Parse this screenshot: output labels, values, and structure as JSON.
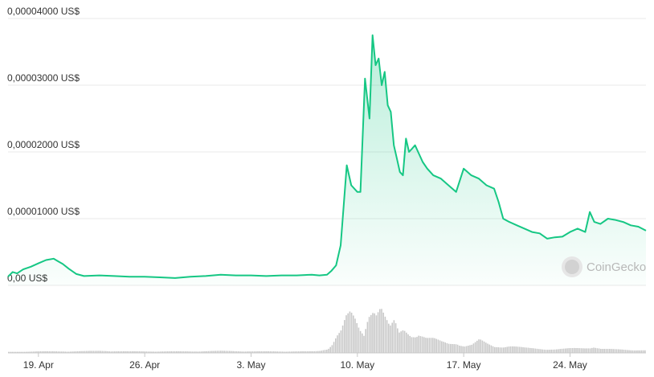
{
  "chart_data": {
    "type": "area",
    "currency_suffix": " US$",
    "y_ticks": [
      {
        "label": "0,00004000 US$",
        "value": 4e-05
      },
      {
        "label": "0,00003000 US$",
        "value": 3e-05
      },
      {
        "label": "0,00002000 US$",
        "value": 2e-05
      },
      {
        "label": "0,00001000 US$",
        "value": 1e-05
      },
      {
        "label": "0,00 US$",
        "value": 0
      }
    ],
    "ylim": [
      0,
      4e-05
    ],
    "x_ticks": [
      "19. Apr",
      "26. Apr",
      "3. May",
      "10. May",
      "17. May",
      "24. May"
    ],
    "x_tick_days": [
      2,
      9,
      16,
      23,
      30,
      37
    ],
    "xlim_days": [
      0,
      42
    ],
    "grid": true,
    "line_color": "#16c784",
    "volume_color": "#c9c9c9",
    "watermark": "CoinGecko",
    "price_series": {
      "x_day": [
        0,
        0.3,
        0.6,
        1.0,
        1.5,
        2.0,
        2.5,
        3.0,
        3.3,
        3.6,
        4.0,
        4.5,
        5.0,
        6.0,
        7.0,
        8.0,
        9.0,
        10.0,
        11.0,
        12.0,
        13.0,
        14.0,
        15.0,
        16.0,
        17.0,
        18.0,
        19.0,
        20.0,
        20.5,
        21.0,
        21.3,
        21.6,
        21.9,
        22.1,
        22.3,
        22.6,
        23.0,
        23.2,
        23.5,
        23.8,
        24.0,
        24.2,
        24.4,
        24.6,
        24.8,
        25.0,
        25.2,
        25.4,
        25.6,
        25.8,
        26.0,
        26.2,
        26.4,
        26.6,
        26.8,
        27.0,
        27.3,
        27.6,
        28.0,
        28.5,
        29.0,
        29.5,
        30.0,
        30.5,
        31.0,
        31.5,
        32.0,
        32.3,
        32.6,
        33.0,
        33.5,
        34.0,
        34.5,
        35.0,
        35.5,
        36.0,
        36.5,
        37.0,
        37.5,
        38.0,
        38.3,
        38.6,
        39.0,
        39.5,
        40.0,
        40.5,
        41.0,
        41.5,
        42.0
      ],
      "price": [
        1.3e-06,
        2e-06,
        1.8e-06,
        2.4e-06,
        2.8e-06,
        3.3e-06,
        3.8e-06,
        4e-06,
        3.6e-06,
        3.2e-06,
        2.5e-06,
        1.7e-06,
        1.4e-06,
        1.5e-06,
        1.4e-06,
        1.3e-06,
        1.3e-06,
        1.2e-06,
        1.1e-06,
        1.3e-06,
        1.4e-06,
        1.6e-06,
        1.5e-06,
        1.5e-06,
        1.4e-06,
        1.5e-06,
        1.5e-06,
        1.6e-06,
        1.5e-06,
        1.6e-06,
        2.2e-06,
        3e-06,
        6e-06,
        1.2e-05,
        1.8e-05,
        1.5e-05,
        1.4e-05,
        1.4e-05,
        3.1e-05,
        2.5e-05,
        3.75e-05,
        3.3e-05,
        3.4e-05,
        3e-05,
        3.2e-05,
        2.7e-05,
        2.6e-05,
        2.1e-05,
        1.9e-05,
        1.7e-05,
        1.65e-05,
        2.2e-05,
        2e-05,
        2.05e-05,
        2.1e-05,
        2e-05,
        1.85e-05,
        1.75e-05,
        1.65e-05,
        1.6e-05,
        1.5e-05,
        1.4e-05,
        1.75e-05,
        1.65e-05,
        1.6e-05,
        1.5e-05,
        1.45e-05,
        1.25e-05,
        1e-05,
        9.5e-06,
        9e-06,
        8.5e-06,
        8e-06,
        7.8e-06,
        7e-06,
        7.2e-06,
        7.3e-06,
        8e-06,
        8.5e-06,
        8e-06,
        1.1e-05,
        9.5e-06,
        9.2e-06,
        1e-05,
        9.8e-06,
        9.5e-06,
        9e-06,
        8.8e-06,
        8.2e-06
      ]
    },
    "volume_series": {
      "x_day": [
        0,
        2,
        4,
        6,
        8,
        10,
        12,
        14,
        16,
        18,
        20,
        20.5,
        21.0,
        21.3,
        21.6,
        21.9,
        22.2,
        22.5,
        22.8,
        23.1,
        23.4,
        23.7,
        24.0,
        24.2,
        24.5,
        24.8,
        25.1,
        25.4,
        25.7,
        26.0,
        26.5,
        27.0,
        27.5,
        28.0,
        28.5,
        29.0,
        29.5,
        30.0,
        30.5,
        31.0,
        31.5,
        32.0,
        33.0,
        34.0,
        35.0,
        36.0,
        37.0,
        38.0,
        38.5,
        39.0,
        40.0,
        41.0,
        42.0
      ],
      "volume": [
        0.02,
        0.03,
        0.03,
        0.04,
        0.03,
        0.03,
        0.03,
        0.04,
        0.03,
        0.03,
        0.03,
        0.04,
        0.08,
        0.18,
        0.35,
        0.45,
        0.7,
        0.78,
        0.65,
        0.45,
        0.35,
        0.8,
        1.0,
        0.85,
        0.95,
        0.7,
        0.5,
        0.62,
        0.38,
        0.45,
        0.35,
        0.4,
        0.3,
        0.28,
        0.22,
        0.18,
        0.2,
        0.14,
        0.16,
        0.26,
        0.18,
        0.12,
        0.14,
        0.1,
        0.08,
        0.07,
        0.09,
        0.1,
        0.12,
        0.08,
        0.07,
        0.06,
        0.05
      ]
    }
  }
}
